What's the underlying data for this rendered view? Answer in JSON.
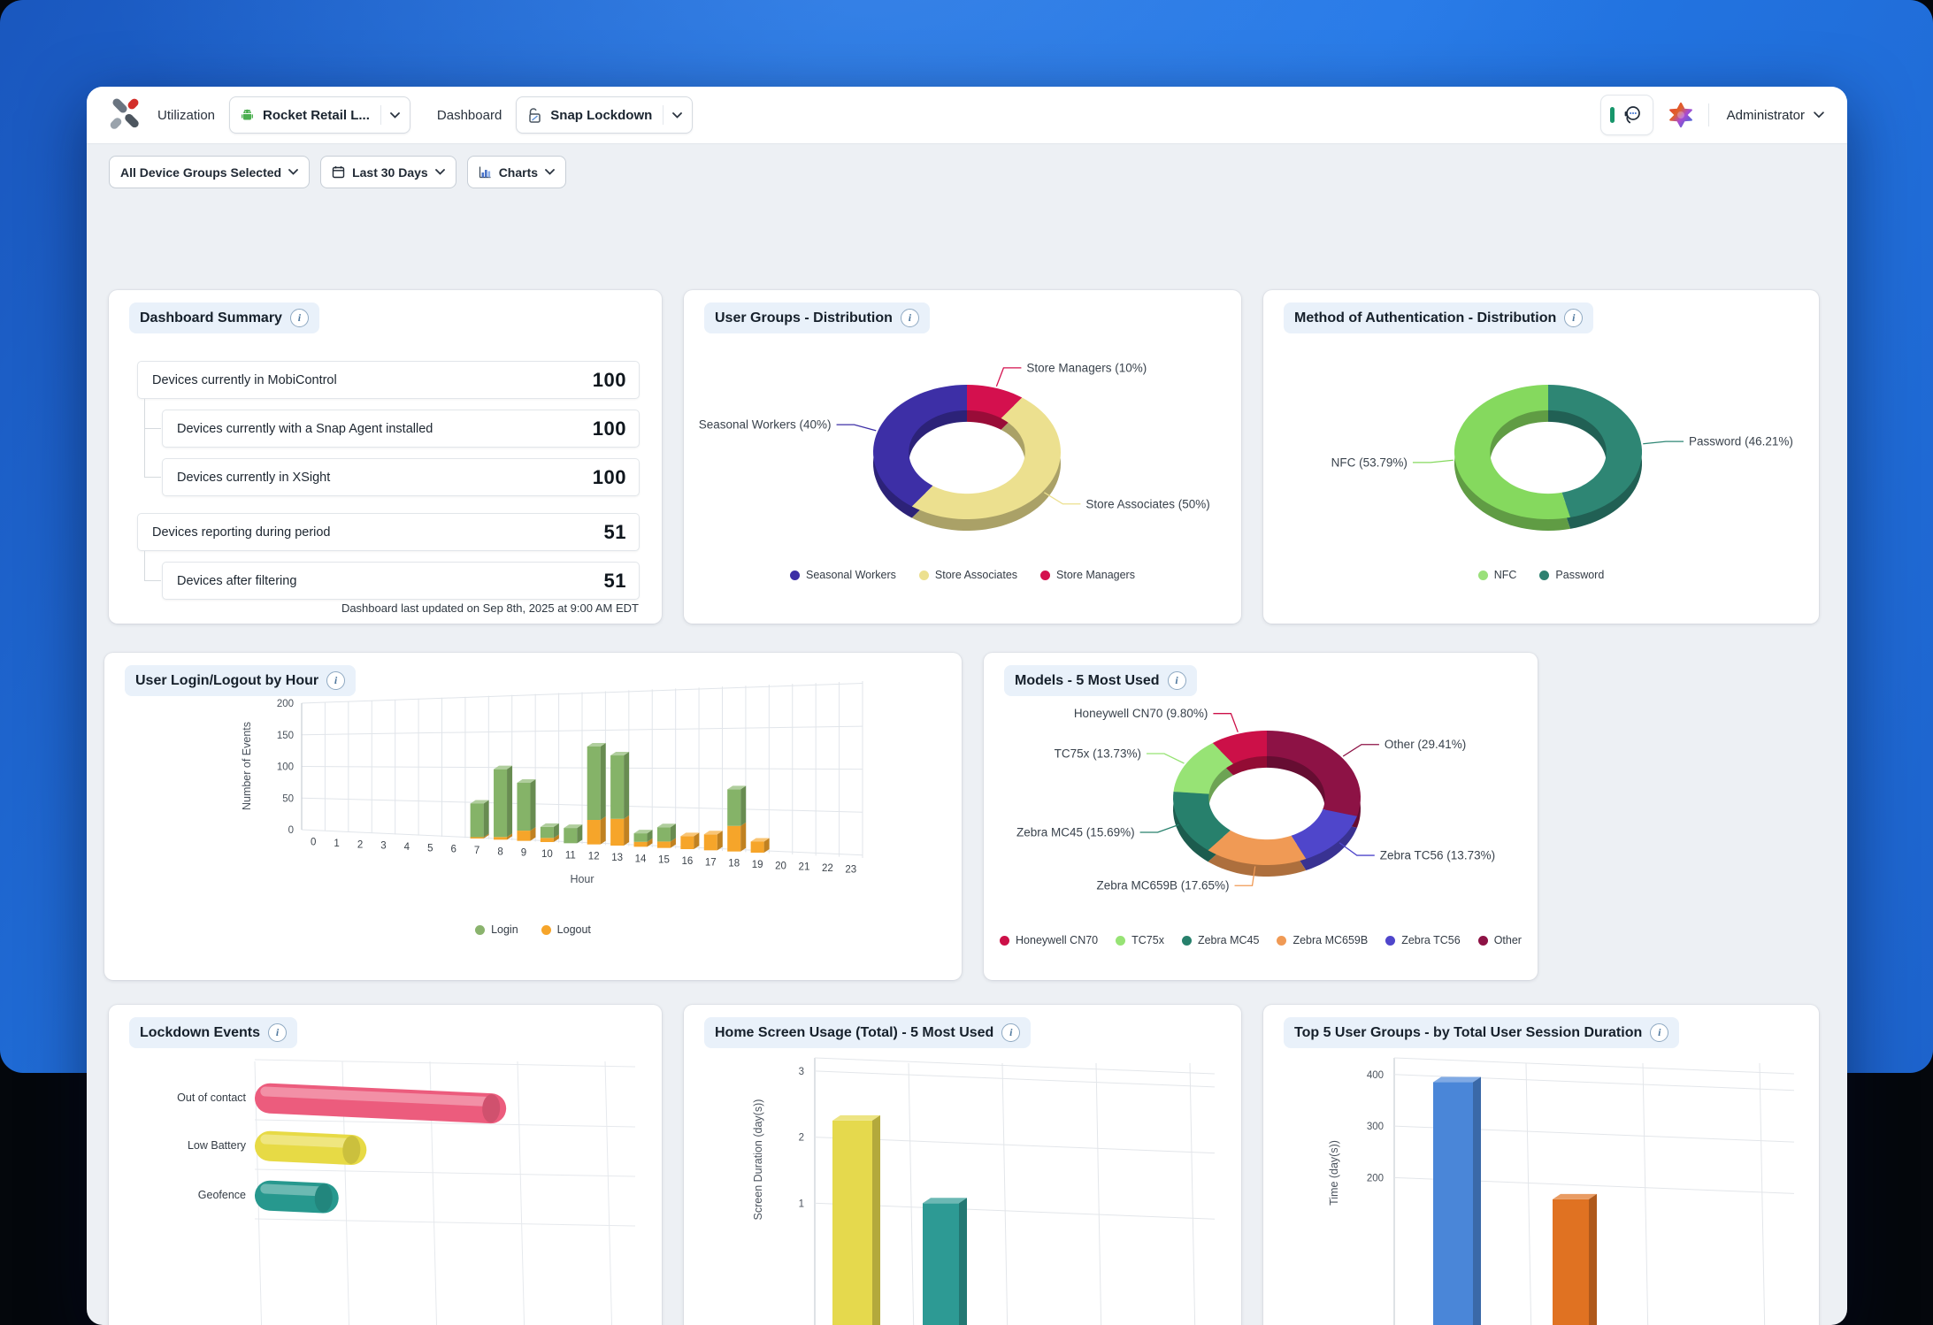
{
  "header": {
    "nav_dashboard_type": "Utilization",
    "profile_selector": {
      "value": "Rocket Retail L...",
      "icon": "android-icon"
    },
    "nav_dashboard_label": "Dashboard",
    "dashboard_selector": {
      "value": "Snap Lockdown",
      "icon": "unlock-icon"
    },
    "support_button": {
      "icon": "headset-chat-icon"
    },
    "ai_button": {
      "icon": "ai-star-icon"
    },
    "user_menu": {
      "label": "Administrator"
    }
  },
  "filters": {
    "device_groups": "All Device Groups Selected",
    "date_range": "Last 30 Days",
    "view_mode": "Charts"
  },
  "summary_card": {
    "title": "Dashboard Summary",
    "rows": [
      {
        "label": "Devices currently in MobiControl",
        "value": "100",
        "indent": 0
      },
      {
        "label": "Devices currently with a Snap Agent installed",
        "value": "100",
        "indent": 1
      },
      {
        "label": "Devices currently in XSight",
        "value": "100",
        "indent": 1
      },
      {
        "label": "Devices reporting during period",
        "value": "51",
        "indent": 0
      },
      {
        "label": "Devices after filtering",
        "value": "51",
        "indent": 1
      }
    ],
    "footer": "Dashboard last updated on Sep 8th, 2025 at 9:00 AM EDT"
  },
  "cards": {
    "user_groups_title": "User Groups - Distribution",
    "auth_title": "Method of Authentication - Distribution",
    "login_logout_title": "User Login/Logout by Hour",
    "models_title": "Models - 5 Most Used",
    "lockdown_title": "Lockdown Events",
    "home_screen_title": "Home Screen Usage (Total) - 5 Most Used",
    "top5_title": "Top 5 User Groups - by Total User Session Duration"
  },
  "chart_data": [
    {
      "id": "user_groups",
      "type": "pie",
      "title": "User Groups - Distribution",
      "slices": [
        {
          "label": "Store Managers",
          "value": 10,
          "display": "Store Managers (10%)",
          "color": "#d4104e"
        },
        {
          "label": "Store Associates",
          "value": 50,
          "display": "Store Associates (50%)",
          "color": "#ece08f"
        },
        {
          "label": "Seasonal Workers",
          "value": 40,
          "display": "Seasonal Workers (40%)",
          "color": "#3d2fa6"
        }
      ],
      "legend": [
        {
          "label": "Seasonal Workers",
          "color": "#3d2fa6"
        },
        {
          "label": "Store Associates",
          "color": "#ece08f"
        },
        {
          "label": "Store Managers",
          "color": "#d4104e"
        }
      ]
    },
    {
      "id": "auth",
      "type": "pie",
      "title": "Method of Authentication - Distribution",
      "slices": [
        {
          "label": "Password",
          "value": 46.21,
          "display": "Password (46.21%)",
          "color": "#2e8674"
        },
        {
          "label": "NFC",
          "value": 53.79,
          "display": "NFC (53.79%)",
          "color": "#85d95e"
        }
      ],
      "legend": [
        {
          "label": "NFC",
          "color": "#9ae07a"
        },
        {
          "label": "Password",
          "color": "#2e8070"
        }
      ]
    },
    {
      "id": "login_logout",
      "type": "bar",
      "stacked": true,
      "title": "User Login/Logout by Hour",
      "xlabel": "Hour",
      "ylabel": "Number of Events",
      "ylim": [
        0,
        200
      ],
      "yticks": [
        0,
        50,
        100,
        150,
        200
      ],
      "categories": [
        "0",
        "1",
        "2",
        "3",
        "4",
        "5",
        "6",
        "7",
        "8",
        "9",
        "10",
        "11",
        "12",
        "13",
        "14",
        "15",
        "16",
        "17",
        "18",
        "19",
        "20",
        "21",
        "22",
        "23"
      ],
      "series": [
        {
          "name": "Logout",
          "color": "#f6a52a",
          "values": [
            0,
            0,
            0,
            0,
            0,
            0,
            0,
            2,
            4,
            15,
            6,
            0,
            35,
            38,
            7,
            9,
            18,
            22,
            35,
            15,
            0,
            0,
            0,
            0
          ]
        },
        {
          "name": "Login",
          "color": "#85b368",
          "values": [
            0,
            0,
            0,
            0,
            0,
            0,
            0,
            50,
            100,
            70,
            16,
            22,
            105,
            90,
            12,
            20,
            0,
            0,
            50,
            0,
            0,
            0,
            0,
            0
          ]
        }
      ],
      "legend": [
        {
          "label": "Login",
          "color": "#8ab36d"
        },
        {
          "label": "Logout",
          "color": "#f6a52a"
        }
      ]
    },
    {
      "id": "models",
      "type": "pie",
      "title": "Models - 5 Most Used",
      "slices": [
        {
          "label": "Other",
          "value": 29.41,
          "display": "Other (29.41%)",
          "color": "#8d1245"
        },
        {
          "label": "Zebra TC56",
          "value": 13.73,
          "display": "Zebra TC56 (13.73%)",
          "color": "#4f46cb"
        },
        {
          "label": "Zebra MC659B",
          "value": 17.65,
          "display": "Zebra MC659B (17.65%)",
          "color": "#f09a55"
        },
        {
          "label": "Zebra MC45",
          "value": 15.69,
          "display": "Zebra MC45 (15.69%)",
          "color": "#27806c"
        },
        {
          "label": "TC75x",
          "value": 13.73,
          "display": "TC75x (13.73%)",
          "color": "#97e375"
        },
        {
          "label": "Honeywell CN70",
          "value": 9.8,
          "display": "Honeywell CN70 (9.80%)",
          "color": "#cc1048"
        }
      ],
      "legend": [
        {
          "label": "Honeywell CN70",
          "color": "#cc1048"
        },
        {
          "label": "TC75x",
          "color": "#97e375"
        },
        {
          "label": "Zebra MC45",
          "color": "#27806c"
        },
        {
          "label": "Zebra MC659B",
          "color": "#f09a55"
        },
        {
          "label": "Zebra TC56",
          "color": "#4f46cb"
        },
        {
          "label": "Other",
          "color": "#8d1245"
        }
      ]
    },
    {
      "id": "lockdown",
      "type": "bar",
      "orientation": "horizontal",
      "title": "Lockdown Events",
      "categories": [
        "Out of contact",
        "Low Battery",
        "Geofence"
      ],
      "values": [
        27,
        12,
        9
      ],
      "xlim": [
        0,
        40
      ],
      "xaxis_visible": false,
      "colors": [
        "#ec5c7d",
        "#e7da45",
        "#27988e"
      ]
    },
    {
      "id": "home_screen",
      "type": "bar",
      "title": "Home Screen Usage (Total) - 5 Most Used",
      "ylabel": "Screen Duration (day(s))",
      "ylim": [
        0,
        3
      ],
      "yticks": [
        1,
        2,
        3
      ],
      "categories": [
        "",
        ""
      ],
      "values": [
        2.25,
        1.0
      ],
      "colors": [
        "#e5d94d",
        "#2d9a94"
      ]
    },
    {
      "id": "top5",
      "type": "bar",
      "title": "Top 5 User Groups - by Total User Session Duration",
      "ylabel": "Time (day(s))",
      "ylim": [
        0,
        400
      ],
      "yticks": [
        200,
        300,
        400
      ],
      "categories": [
        "",
        ""
      ],
      "values": [
        385,
        158
      ],
      "colors": [
        "#4a86d8",
        "#e07222"
      ]
    }
  ]
}
